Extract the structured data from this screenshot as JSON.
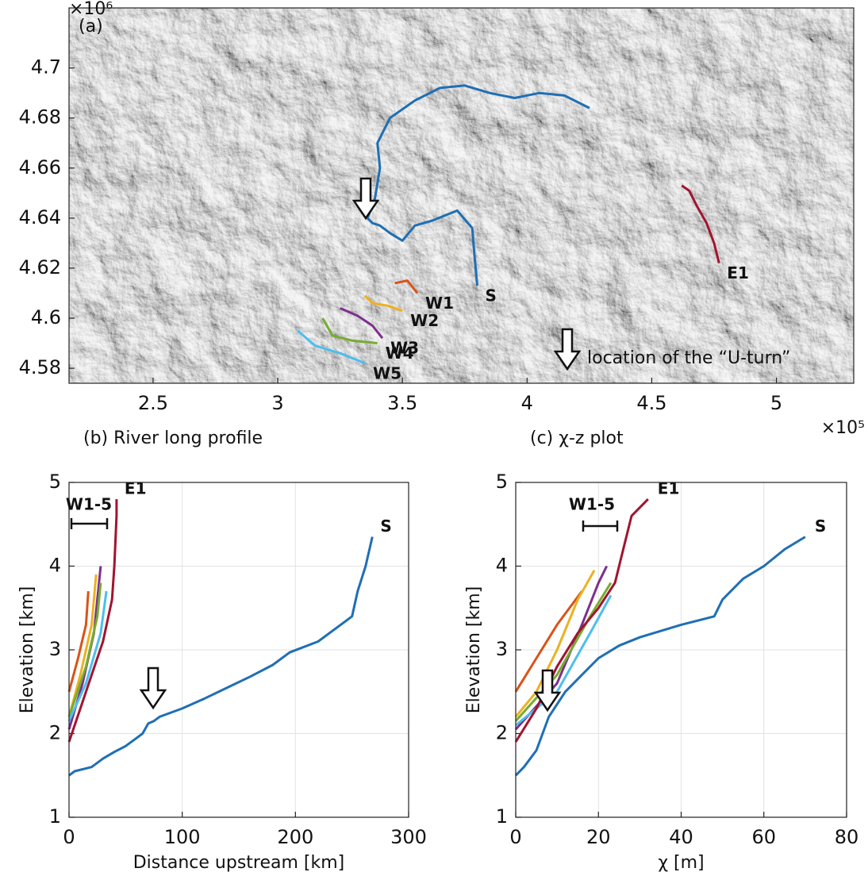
{
  "chart_data": [
    {
      "type": "map",
      "title": "(a)",
      "x_exponent": "×10⁵",
      "y_exponent": "×10⁶",
      "xlim": [
        2.163,
        5.31
      ],
      "ylim": [
        4.574,
        4.724
      ],
      "xticks": [
        2.5,
        3,
        3.5,
        4,
        4.5,
        5
      ],
      "yticks": [
        4.58,
        4.6,
        4.62,
        4.64,
        4.66,
        4.68,
        4.7
      ],
      "annotations": [
        "location of the “U-turn”"
      ],
      "series": [
        {
          "name": "S",
          "color": "#1f6fb4",
          "x": [
            3.8,
            3.79,
            3.78,
            3.72,
            3.62,
            3.55,
            3.5,
            3.45,
            3.41,
            3.38,
            3.36,
            3.39,
            3.41,
            3.4,
            3.45,
            3.55,
            3.65,
            3.75,
            3.85,
            3.95,
            4.05,
            4.15,
            4.25
          ],
          "y": [
            4.613,
            4.624,
            4.636,
            4.643,
            4.639,
            4.637,
            4.631,
            4.634,
            4.637,
            4.638,
            4.64,
            4.648,
            4.66,
            4.67,
            4.68,
            4.687,
            4.692,
            4.693,
            4.69,
            4.688,
            4.69,
            4.689,
            4.684
          ]
        },
        {
          "name": "W1",
          "color": "#d95319",
          "x": [
            3.56,
            3.52,
            3.47
          ],
          "y": [
            4.61,
            4.615,
            4.614
          ]
        },
        {
          "name": "W2",
          "color": "#edb120",
          "x": [
            3.5,
            3.44,
            3.38,
            3.35
          ],
          "y": [
            4.603,
            4.605,
            4.606,
            4.609
          ]
        },
        {
          "name": "W3",
          "color": "#7e2f8e",
          "x": [
            3.42,
            3.38,
            3.32,
            3.25
          ],
          "y": [
            4.592,
            4.597,
            4.601,
            4.604
          ]
        },
        {
          "name": "W4",
          "color": "#77ac30",
          "x": [
            3.4,
            3.3,
            3.22,
            3.18
          ],
          "y": [
            4.59,
            4.591,
            4.593,
            4.6
          ]
        },
        {
          "name": "W5",
          "color": "#4dbeee",
          "x": [
            3.35,
            3.25,
            3.15,
            3.08
          ],
          "y": [
            4.582,
            4.586,
            4.589,
            4.595
          ]
        },
        {
          "name": "E1",
          "color": "#a2142f",
          "x": [
            4.77,
            4.75,
            4.72,
            4.68,
            4.65,
            4.62
          ],
          "y": [
            4.622,
            4.63,
            4.638,
            4.645,
            4.651,
            4.653
          ]
        }
      ]
    },
    {
      "type": "line",
      "title": "(b) River long profile",
      "xlabel": "Distance upstream [km]",
      "ylabel": "Elevation [km]",
      "xlim": [
        0,
        300
      ],
      "ylim": [
        1,
        5
      ],
      "xticks": [
        0,
        100,
        200,
        300
      ],
      "yticks": [
        1,
        2,
        3,
        4,
        5
      ],
      "grid": true,
      "annotations": [
        "W1-5"
      ],
      "series": [
        {
          "color": "#d95319",
          "x": [
            0,
            8,
            15,
            17
          ],
          "y": [
            2.5,
            2.9,
            3.3,
            3.7
          ]
        },
        {
          "color": "#edb120",
          "x": [
            0,
            10,
            20,
            24
          ],
          "y": [
            2.2,
            2.7,
            3.3,
            3.9
          ]
        },
        {
          "color": "#7e2f8e",
          "x": [
            0,
            12,
            22,
            28
          ],
          "y": [
            2.05,
            2.6,
            3.2,
            4.0
          ]
        },
        {
          "color": "#77ac30",
          "x": [
            0,
            15,
            25,
            28
          ],
          "y": [
            2.2,
            2.8,
            3.4,
            3.8
          ]
        },
        {
          "color": "#4dbeee",
          "x": [
            0,
            15,
            28,
            33
          ],
          "y": [
            2.15,
            2.6,
            3.2,
            3.7
          ]
        },
        {
          "name": "E1",
          "color": "#a2142f",
          "x": [
            0,
            10,
            20,
            30,
            38,
            40,
            42,
            42
          ],
          "y": [
            1.9,
            2.3,
            2.7,
            3.1,
            3.6,
            4.0,
            4.6,
            4.8
          ]
        },
        {
          "name": "S",
          "color": "#1f6fb4",
          "x": [
            0,
            5,
            20,
            30,
            40,
            50,
            60,
            65,
            70,
            75,
            80,
            100,
            120,
            140,
            160,
            180,
            195,
            220,
            240,
            250,
            255,
            262,
            268
          ],
          "y": [
            1.5,
            1.55,
            1.6,
            1.7,
            1.78,
            1.85,
            1.95,
            2.0,
            2.12,
            2.15,
            2.2,
            2.3,
            2.42,
            2.55,
            2.68,
            2.82,
            2.97,
            3.1,
            3.3,
            3.4,
            3.7,
            4.0,
            4.35
          ]
        }
      ]
    },
    {
      "type": "line",
      "title": "(c) χ-z plot",
      "xlabel": "χ [m]",
      "ylabel": "Elevation [km]",
      "xlim": [
        0,
        80
      ],
      "ylim": [
        1,
        5
      ],
      "xticks": [
        0,
        20,
        40,
        60,
        80
      ],
      "yticks": [
        1,
        2,
        3,
        4,
        5
      ],
      "grid": true,
      "annotations": [
        "W1-5"
      ],
      "series": [
        {
          "color": "#d95319",
          "x": [
            0,
            5,
            10,
            16
          ],
          "y": [
            2.5,
            2.9,
            3.3,
            3.7
          ]
        },
        {
          "color": "#edb120",
          "x": [
            0,
            5,
            10,
            15,
            19
          ],
          "y": [
            2.2,
            2.5,
            3.0,
            3.6,
            3.95
          ]
        },
        {
          "color": "#7e2f8e",
          "x": [
            0,
            10,
            16,
            20,
            22
          ],
          "y": [
            2.05,
            2.6,
            3.3,
            3.8,
            4.0
          ]
        },
        {
          "color": "#77ac30",
          "x": [
            0,
            10,
            18,
            23
          ],
          "y": [
            2.15,
            2.7,
            3.4,
            3.8
          ]
        },
        {
          "color": "#4dbeee",
          "x": [
            0,
            10,
            18,
            23
          ],
          "y": [
            2.1,
            2.5,
            3.2,
            3.65
          ]
        },
        {
          "name": "E1",
          "color": "#a2142f",
          "x": [
            0,
            5,
            10,
            15,
            20,
            24,
            26,
            28,
            32
          ],
          "y": [
            1.9,
            2.3,
            2.8,
            3.2,
            3.5,
            3.8,
            4.2,
            4.6,
            4.8
          ]
        },
        {
          "name": "S",
          "color": "#1f6fb4",
          "x": [
            0,
            2,
            5,
            8,
            12,
            16,
            20,
            25,
            30,
            40,
            48,
            50,
            55,
            60,
            65,
            70
          ],
          "y": [
            1.5,
            1.6,
            1.8,
            2.2,
            2.5,
            2.7,
            2.9,
            3.05,
            3.15,
            3.3,
            3.4,
            3.6,
            3.85,
            4.0,
            4.2,
            4.35
          ]
        }
      ]
    }
  ]
}
